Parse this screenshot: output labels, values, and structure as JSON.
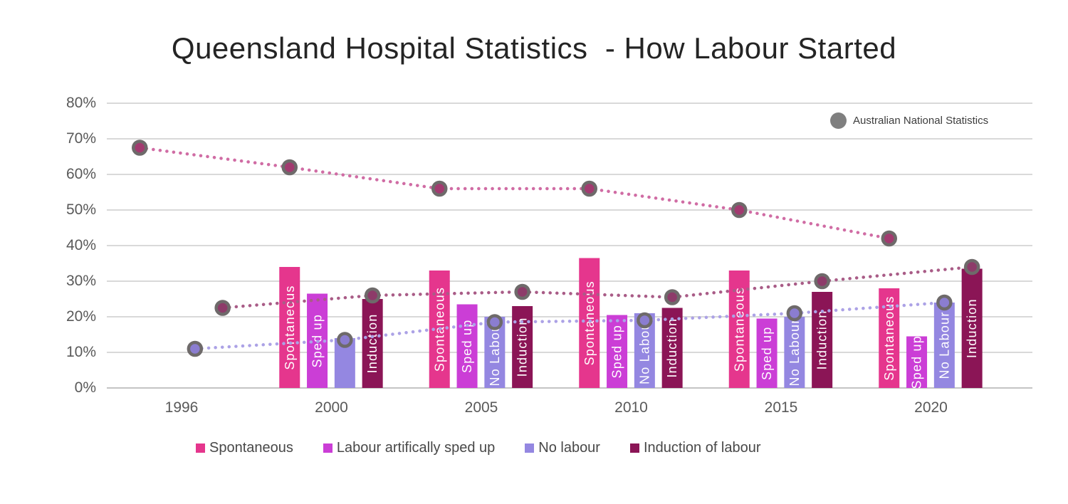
{
  "chart_data": {
    "type": "bar+line",
    "title": "Queensland Hospital Statistics  - How Labour Started",
    "categories": [
      "1996",
      "2000",
      "2005",
      "2010",
      "2015",
      "2020"
    ],
    "ylim": [
      0,
      80
    ],
    "y_tick_step": 10,
    "y_tick_labels": [
      "0%",
      "10%",
      "20%",
      "30%",
      "40%",
      "50%",
      "60%",
      "70%",
      "80%"
    ],
    "grid": true,
    "legend_position": "bottom",
    "bar_series": [
      {
        "name": "Spontaneous",
        "color": "#E5368D",
        "values": [
          null,
          34,
          33,
          36.5,
          33,
          28
        ],
        "bar_labels": [
          null,
          "Spontaneous",
          "Spontaneous",
          "Spontaneous",
          "Spontaneous",
          "Spontaneous"
        ]
      },
      {
        "name": "Labour artifically sped up",
        "color": "#CB3ED6",
        "values": [
          null,
          26.5,
          23.5,
          20.5,
          19.5,
          14.5
        ],
        "bar_labels": [
          null,
          "Sped up",
          "Sped up",
          "Sped up",
          "Sped up",
          "Sped up"
        ]
      },
      {
        "name": "No labour",
        "color": "#9487E1",
        "values": [
          null,
          14,
          20,
          21,
          20,
          24
        ],
        "bar_labels": [
          null,
          null,
          "No Labour",
          "No Labour",
          "No Labour",
          "No Labour"
        ]
      },
      {
        "name": "Induction of labour",
        "color": "#8B1556",
        "values": [
          null,
          25,
          23,
          22.5,
          27,
          33.5
        ],
        "bar_labels": [
          null,
          "Induction",
          "Induction",
          "Induction",
          "Induction",
          "Induction"
        ]
      }
    ],
    "line_series": [
      {
        "name": "Spontaneous - national",
        "anchor_bar": 0,
        "line_color": "#D06CA4",
        "marker_fill": "#A33A70",
        "values": [
          67.5,
          62,
          56,
          56,
          50,
          42
        ]
      },
      {
        "name": "No labour - national",
        "anchor_bar": 2,
        "line_color": "#ACA2E6",
        "marker_fill": "#8B7DD0",
        "values": [
          11,
          13.5,
          18.5,
          19,
          21,
          24
        ]
      },
      {
        "name": "Induction - national",
        "anchor_bar": 3,
        "line_color": "#A95C87",
        "marker_fill": "#8D3B69",
        "values": [
          22.5,
          26,
          27,
          25.5,
          30,
          34
        ]
      }
    ],
    "national_legend": {
      "label": "Australian National Statistics",
      "marker_color": "#7F7F7F"
    },
    "colors": {
      "gridline": "#D9D9D9",
      "baseline": "#C4C4C4",
      "marker_ring": "#6E6A6A",
      "axis_text": "#595959"
    }
  }
}
